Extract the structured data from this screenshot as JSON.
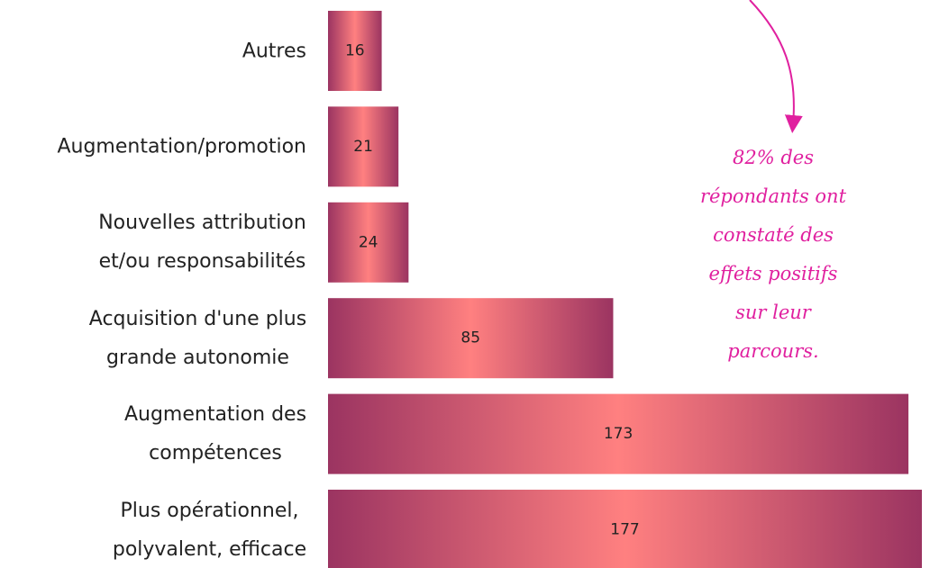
{
  "chart_data": {
    "type": "bar",
    "orientation": "horizontal",
    "categories": [
      "Autres",
      "Augmentation/promotion",
      "Nouvelles attribution\net/ou responsabilités",
      "Acquisition d'une plus\ngrande autonomie",
      "Augmentation des\ncompétences",
      "Plus opérationnel,\npolyvalent, efficace"
    ],
    "values": [
      16,
      21,
      24,
      85,
      173,
      177
    ],
    "color": [
      "#9b3461",
      "#ff8080"
    ],
    "annotation": "82% des répondants ont\nconstaté des effets positifs\nsur leur parcours.",
    "annotation_color": "#e0209f"
  }
}
